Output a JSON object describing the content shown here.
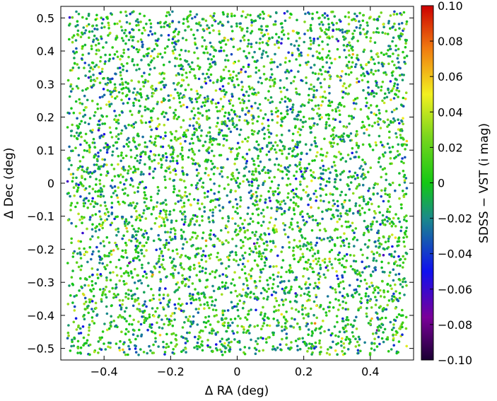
{
  "chart_data": {
    "type": "scatter",
    "title": "",
    "xlabel": "Δ RA (deg)",
    "ylabel": "Δ Dec (deg)",
    "colorbar_label": "SDSS − VST (i mag)",
    "xlim": [
      -0.53,
      0.53
    ],
    "ylim": [
      -0.535,
      0.535
    ],
    "data_extent": {
      "x": [
        -0.51,
        0.51
      ],
      "y": [
        -0.52,
        0.52
      ]
    },
    "x_ticks": [
      -0.4,
      -0.2,
      0,
      0.2,
      0.4
    ],
    "x_tick_labels": [
      "−0.4",
      "−0.2",
      "0",
      "0.2",
      "0.4"
    ],
    "y_ticks": [
      -0.5,
      -0.4,
      -0.3,
      -0.2,
      -0.1,
      0,
      0.1,
      0.2,
      0.3,
      0.4,
      0.5
    ],
    "y_tick_labels": [
      "−0.5",
      "−0.4",
      "−0.3",
      "−0.2",
      "−0.1",
      "0",
      "0.1",
      "0.2",
      "0.3",
      "0.4",
      "0.5"
    ],
    "color_range": [
      -0.1,
      0.1
    ],
    "color_ticks": [
      -0.1,
      -0.08,
      -0.06,
      -0.04,
      -0.02,
      0,
      0.02,
      0.04,
      0.06,
      0.08,
      0.1
    ],
    "color_tick_labels": [
      "−0.10",
      "−0.08",
      "−0.06",
      "−0.04",
      "−0.02",
      "0",
      "0.02",
      "0.04",
      "0.06",
      "0.08",
      "0.10"
    ],
    "colormap_stops": [
      {
        "v": 0.0,
        "color": "#1a0033"
      },
      {
        "v": 0.12,
        "color": "#7a0099"
      },
      {
        "v": 0.25,
        "color": "#1010ee"
      },
      {
        "v": 0.4,
        "color": "#1a8a8a"
      },
      {
        "v": 0.5,
        "color": "#14c814"
      },
      {
        "v": 0.63,
        "color": "#7ad61e"
      },
      {
        "v": 0.75,
        "color": "#f2f020"
      },
      {
        "v": 0.88,
        "color": "#f07a10"
      },
      {
        "v": 1.0,
        "color": "#cc0000"
      }
    ],
    "point_count": 5000,
    "point_value_mean": 0.0,
    "point_value_sd": 0.022,
    "grid": false,
    "legend": "none"
  }
}
